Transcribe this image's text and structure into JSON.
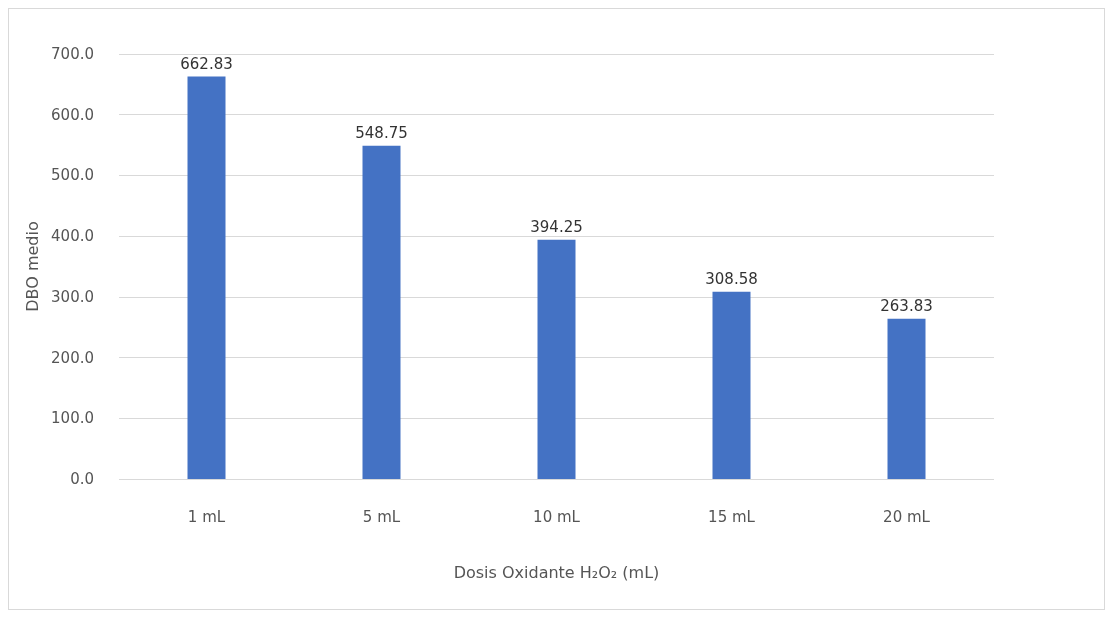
{
  "chart_data": {
    "type": "bar",
    "xlabel": "Dosis Oxidante H₂O₂ (mL)",
    "ylabel": "DBO medio",
    "categories": [
      "1 mL",
      "5 mL",
      "10 mL",
      "15 mL",
      "20 mL"
    ],
    "values": [
      662.83,
      548.75,
      394.25,
      308.58,
      263.83
    ],
    "color": "#4472c4",
    "ylim": [
      0,
      700
    ],
    "yticks": [
      {
        "value": 0,
        "label": "0.0"
      },
      {
        "value": 100,
        "label": "100.0"
      },
      {
        "value": 200,
        "label": "200.0"
      },
      {
        "value": 300,
        "label": "300.0"
      },
      {
        "value": 400,
        "label": "400.0"
      },
      {
        "value": 500,
        "label": "500.0"
      },
      {
        "value": 600,
        "label": "600.0"
      },
      {
        "value": 700,
        "label": "700.0"
      }
    ],
    "grid": "y",
    "data_labels": true
  }
}
